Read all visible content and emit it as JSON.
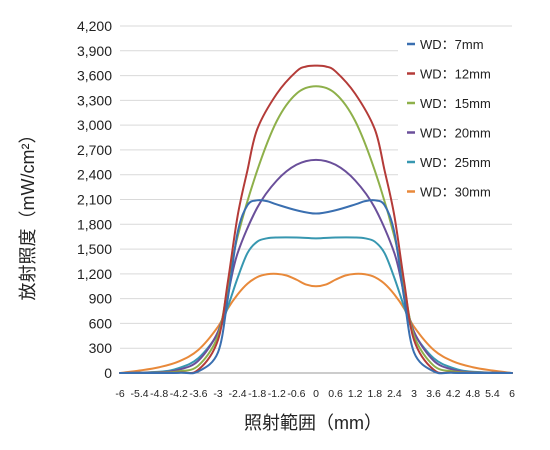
{
  "chart_data": {
    "type": "line",
    "title": "",
    "xlabel": "照射範囲（mm）",
    "ylabel": "放射照度（mW/cm²）",
    "xlim": [
      -6,
      6
    ],
    "ylim": [
      0,
      4200
    ],
    "y_ticks": [
      0,
      300,
      600,
      900,
      1200,
      1500,
      1800,
      2100,
      2400,
      2700,
      3000,
      3300,
      3600,
      3900,
      4200
    ],
    "y_tick_labels": [
      "0",
      "300",
      "600",
      "900",
      "1,200",
      "1,500",
      "1,800",
      "2,100",
      "2,400",
      "2,700",
      "3,000",
      "3,300",
      "3,600",
      "3,900",
      "4,200"
    ],
    "x_ticks": [
      -6,
      -5.4,
      -4.8,
      -4.2,
      -3.6,
      -3,
      -2.4,
      -1.8,
      -1.2,
      -0.6,
      0,
      0.6,
      1.2,
      1.8,
      2.4,
      3,
      3.6,
      4.2,
      4.8,
      5.4,
      6
    ],
    "x_tick_labels": [
      "-6",
      "-5.4",
      "-4.8",
      "-4.2",
      "-3.6",
      "-3",
      "-2.4",
      "-1.8",
      "-1.2",
      "-0.6",
      "0",
      "0.6",
      "1.2",
      "1.8",
      "2.4",
      "3",
      "3.6",
      "4.2",
      "4.8",
      "5.4",
      "6"
    ],
    "grid": "horizontal",
    "legend_position": "top-right",
    "series": [
      {
        "name": "WD：7mm",
        "color": "#3a6fb0",
        "points": [
          [
            -6,
            0
          ],
          [
            -4.2,
            2
          ],
          [
            -3.6,
            20
          ],
          [
            -3,
            250
          ],
          [
            -2.7,
            900
          ],
          [
            -2.4,
            1700
          ],
          [
            -2.1,
            2030
          ],
          [
            -1.8,
            2090
          ],
          [
            -1.5,
            2080
          ],
          [
            -1.2,
            2040
          ],
          [
            -0.6,
            1970
          ],
          [
            0,
            1930
          ],
          [
            0.6,
            1970
          ],
          [
            1.2,
            2040
          ],
          [
            1.5,
            2080
          ],
          [
            1.8,
            2090
          ],
          [
            2.1,
            2030
          ],
          [
            2.4,
            1700
          ],
          [
            2.7,
            900
          ],
          [
            3,
            250
          ],
          [
            3.6,
            20
          ],
          [
            4.2,
            2
          ],
          [
            6,
            0
          ]
        ]
      },
      {
        "name": "WD：12mm",
        "color": "#b43b38",
        "points": [
          [
            -6,
            0
          ],
          [
            -4.2,
            5
          ],
          [
            -3.6,
            40
          ],
          [
            -3,
            400
          ],
          [
            -2.7,
            1100
          ],
          [
            -2.4,
            1900
          ],
          [
            -2.1,
            2450
          ],
          [
            -1.8,
            2950
          ],
          [
            -1.2,
            3380
          ],
          [
            -0.6,
            3650
          ],
          [
            -0.3,
            3710
          ],
          [
            0,
            3720
          ],
          [
            0.3,
            3710
          ],
          [
            0.6,
            3650
          ],
          [
            1.2,
            3380
          ],
          [
            1.8,
            2950
          ],
          [
            2.1,
            2450
          ],
          [
            2.4,
            1900
          ],
          [
            2.7,
            1100
          ],
          [
            3,
            400
          ],
          [
            3.6,
            40
          ],
          [
            4.2,
            5
          ],
          [
            6,
            0
          ]
        ]
      },
      {
        "name": "WD：15mm",
        "color": "#8eb04a",
        "points": [
          [
            -6,
            0
          ],
          [
            -4.8,
            5
          ],
          [
            -4.2,
            20
          ],
          [
            -3.6,
            90
          ],
          [
            -3,
            450
          ],
          [
            -2.7,
            1050
          ],
          [
            -2.4,
            1650
          ],
          [
            -1.8,
            2450
          ],
          [
            -1.2,
            3050
          ],
          [
            -0.6,
            3380
          ],
          [
            0,
            3470
          ],
          [
            0.6,
            3380
          ],
          [
            1.2,
            3050
          ],
          [
            1.8,
            2450
          ],
          [
            2.4,
            1650
          ],
          [
            2.7,
            1050
          ],
          [
            3,
            450
          ],
          [
            3.6,
            90
          ],
          [
            4.2,
            20
          ],
          [
            4.8,
            5
          ],
          [
            6,
            0
          ]
        ]
      },
      {
        "name": "WD：20mm",
        "color": "#6a4f9a",
        "points": [
          [
            -6,
            0
          ],
          [
            -4.8,
            10
          ],
          [
            -4.2,
            40
          ],
          [
            -3.6,
            150
          ],
          [
            -3,
            500
          ],
          [
            -2.7,
            950
          ],
          [
            -2.4,
            1450
          ],
          [
            -1.8,
            2000
          ],
          [
            -1.2,
            2330
          ],
          [
            -0.6,
            2520
          ],
          [
            0,
            2580
          ],
          [
            0.6,
            2520
          ],
          [
            1.2,
            2330
          ],
          [
            1.8,
            2000
          ],
          [
            2.4,
            1450
          ],
          [
            2.7,
            950
          ],
          [
            3,
            500
          ],
          [
            3.6,
            150
          ],
          [
            4.2,
            40
          ],
          [
            4.8,
            10
          ],
          [
            6,
            0
          ]
        ]
      },
      {
        "name": "WD：25mm",
        "color": "#3797b0",
        "points": [
          [
            -6,
            0
          ],
          [
            -4.8,
            15
          ],
          [
            -4.2,
            60
          ],
          [
            -3.6,
            180
          ],
          [
            -3,
            480
          ],
          [
            -2.7,
            800
          ],
          [
            -2.4,
            1150
          ],
          [
            -2.1,
            1450
          ],
          [
            -1.8,
            1590
          ],
          [
            -1.5,
            1630
          ],
          [
            -1.2,
            1640
          ],
          [
            -0.6,
            1640
          ],
          [
            0,
            1630
          ],
          [
            0.6,
            1640
          ],
          [
            1.2,
            1640
          ],
          [
            1.5,
            1630
          ],
          [
            1.8,
            1590
          ],
          [
            2.1,
            1450
          ],
          [
            2.4,
            1150
          ],
          [
            2.7,
            800
          ],
          [
            3,
            480
          ],
          [
            3.6,
            180
          ],
          [
            4.2,
            60
          ],
          [
            4.8,
            15
          ],
          [
            6,
            0
          ]
        ]
      },
      {
        "name": "WD：30mm",
        "color": "#e8893a",
        "points": [
          [
            -6,
            0
          ],
          [
            -5.4,
            30
          ],
          [
            -4.8,
            70
          ],
          [
            -4.2,
            140
          ],
          [
            -3.6,
            280
          ],
          [
            -3,
            560
          ],
          [
            -2.7,
            780
          ],
          [
            -2.4,
            950
          ],
          [
            -2.1,
            1080
          ],
          [
            -1.8,
            1160
          ],
          [
            -1.5,
            1195
          ],
          [
            -1.2,
            1200
          ],
          [
            -0.9,
            1180
          ],
          [
            -0.6,
            1130
          ],
          [
            -0.3,
            1070
          ],
          [
            0,
            1050
          ],
          [
            0.3,
            1070
          ],
          [
            0.6,
            1130
          ],
          [
            0.9,
            1180
          ],
          [
            1.2,
            1200
          ],
          [
            1.5,
            1195
          ],
          [
            1.8,
            1160
          ],
          [
            2.1,
            1080
          ],
          [
            2.4,
            950
          ],
          [
            2.7,
            780
          ],
          [
            3,
            560
          ],
          [
            3.6,
            280
          ],
          [
            4.2,
            140
          ],
          [
            4.8,
            70
          ],
          [
            5.4,
            30
          ],
          [
            6,
            0
          ]
        ]
      }
    ]
  }
}
